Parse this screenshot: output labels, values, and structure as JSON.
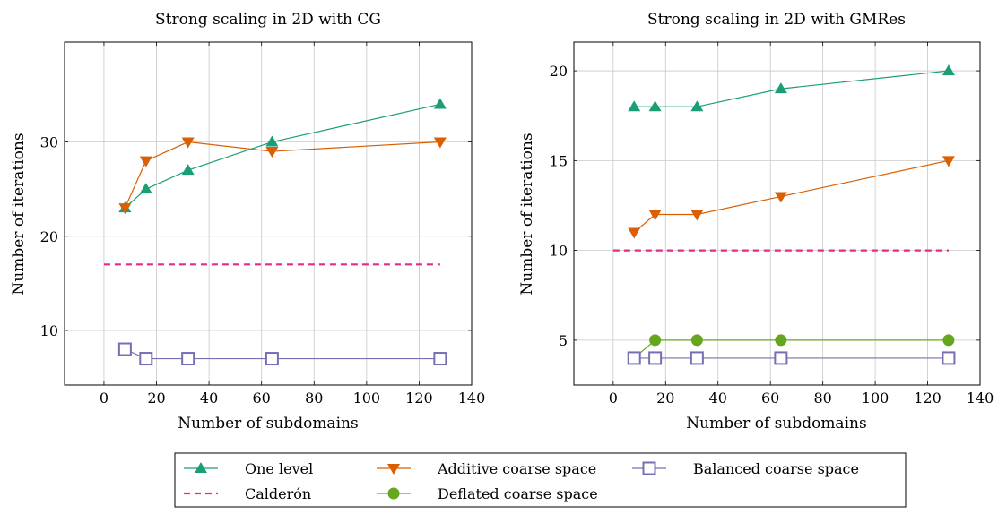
{
  "colors": {
    "one_level": "#1b9e77",
    "additive": "#d95f02",
    "balanced": "#7570b3",
    "calderon": "#e7298a",
    "deflated": "#66a61e",
    "grid": "#c8c8c8"
  },
  "legend": {
    "placement": "bottom-center",
    "entries": [
      {
        "key": "one_level",
        "label": "One level",
        "marker": "triangle-up",
        "dashed": false
      },
      {
        "key": "additive",
        "label": "Additive coarse space",
        "marker": "triangle-down",
        "dashed": false
      },
      {
        "key": "balanced",
        "label": "Balanced coarse space",
        "marker": "square-open",
        "dashed": false
      },
      {
        "key": "calderon",
        "label": "Calderón",
        "marker": "none",
        "dashed": true
      },
      {
        "key": "deflated",
        "label": "Deflated coarse space",
        "marker": "circle",
        "dashed": false
      }
    ]
  },
  "chart_data": [
    {
      "type": "line",
      "title": "Strong scaling in 2D with CG",
      "xlabel": "Number of subdomains",
      "ylabel": "Number of iterations",
      "xlim": [
        -15,
        140
      ],
      "ylim": [
        4.2,
        40.6
      ],
      "xticks": [
        0,
        20,
        40,
        60,
        80,
        100,
        120,
        140
      ],
      "yticks": [
        10,
        20,
        30
      ],
      "grid": true,
      "series": [
        {
          "key": "one_level",
          "name": "One level",
          "x": [
            8,
            16,
            32,
            64,
            128
          ],
          "y": [
            23,
            25,
            27,
            30,
            34
          ]
        },
        {
          "key": "additive",
          "name": "Additive coarse space",
          "x": [
            8,
            16,
            32,
            64,
            128
          ],
          "y": [
            23,
            28,
            30,
            29,
            30
          ]
        },
        {
          "key": "calderon",
          "name": "Calderón",
          "x": [
            0,
            128
          ],
          "y": [
            17,
            17
          ]
        },
        {
          "key": "balanced",
          "name": "Balanced coarse space",
          "x": [
            8,
            16,
            32,
            64,
            128
          ],
          "y": [
            8,
            7,
            7,
            7,
            7
          ]
        }
      ]
    },
    {
      "type": "line",
      "title": "Strong scaling in 2D with GMRes",
      "xlabel": "Number of subdomains",
      "ylabel": "Number of iterations",
      "xlim": [
        -15,
        140
      ],
      "ylim": [
        2.5,
        21.6
      ],
      "xticks": [
        0,
        20,
        40,
        60,
        80,
        100,
        120,
        140
      ],
      "yticks": [
        5,
        10,
        15,
        20
      ],
      "grid": true,
      "series": [
        {
          "key": "one_level",
          "name": "One level",
          "x": [
            8,
            16,
            32,
            64,
            128
          ],
          "y": [
            18,
            18,
            18,
            19,
            20
          ]
        },
        {
          "key": "additive",
          "name": "Additive coarse space",
          "x": [
            8,
            16,
            32,
            64,
            128
          ],
          "y": [
            11,
            12,
            12,
            13,
            15
          ]
        },
        {
          "key": "calderon",
          "name": "Calderón",
          "x": [
            0,
            128
          ],
          "y": [
            10,
            10
          ]
        },
        {
          "key": "deflated",
          "name": "Deflated coarse space",
          "x": [
            8,
            16,
            32,
            64,
            128
          ],
          "y": [
            4,
            5,
            5,
            5,
            5
          ]
        },
        {
          "key": "balanced",
          "name": "Balanced coarse space",
          "x": [
            8,
            16,
            32,
            64,
            128
          ],
          "y": [
            4,
            4,
            4,
            4,
            4
          ]
        }
      ]
    }
  ]
}
